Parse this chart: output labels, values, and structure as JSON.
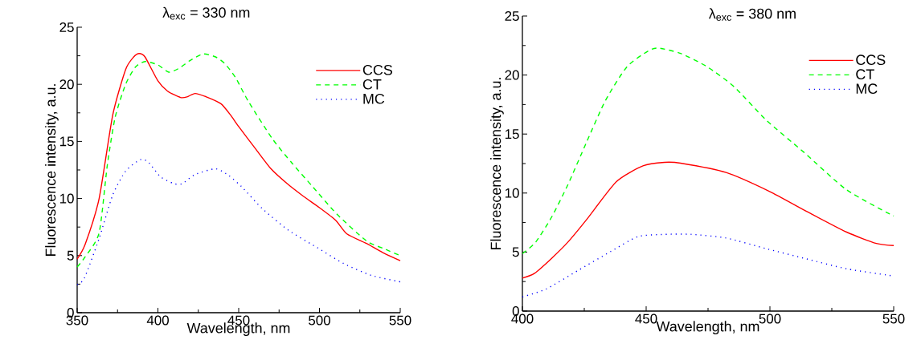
{
  "chart_data": [
    {
      "type": "line",
      "title": "λ$_{exc}$ = 330 nm",
      "xlabel": "Wavelength, nm",
      "ylabel": "Fluorescence intensity, a.u.",
      "xlim": [
        350,
        550
      ],
      "ylim": [
        0,
        25
      ],
      "xticks": [
        350,
        400,
        450,
        500,
        550
      ],
      "yticks": [
        0,
        5,
        10,
        15,
        20,
        25
      ],
      "legend": "top right",
      "series": [
        {
          "name": "CCS",
          "color": "#ff0000",
          "line_style": "solid",
          "x": [
            350,
            355,
            363.6,
            372,
            380,
            385,
            388.4,
            392,
            400,
            406,
            414,
            418,
            423,
            430,
            439,
            445,
            450,
            461,
            470,
            480,
            490,
            500,
            510,
            517,
            530,
            540,
            550
          ],
          "values": [
            4.7,
            6.0,
            10.0,
            17.3,
            21.3,
            22.4,
            22.7,
            22.4,
            20.3,
            19.4,
            18.85,
            18.9,
            19.2,
            18.9,
            18.3,
            17.3,
            16.3,
            14.25,
            12.6,
            11.3,
            10.2,
            9.2,
            8.1,
            6.9,
            6.0,
            5.2,
            4.55
          ]
        },
        {
          "name": "CT",
          "color": "#00ff00",
          "line_style": "dashed",
          "x": [
            350,
            355,
            363.6,
            368.6,
            373.5,
            380,
            386,
            392,
            400,
            406.7,
            413,
            420,
            428,
            435.7,
            441.5,
            448,
            456,
            471,
            483,
            496,
            511,
            529,
            540,
            550
          ],
          "values": [
            4.0,
            4.9,
            7.0,
            12.85,
            17.1,
            20.0,
            21.5,
            22.0,
            21.7,
            21.07,
            21.4,
            22.1,
            22.66,
            22.4,
            21.8,
            20.6,
            18.5,
            15.2,
            13.1,
            11.0,
            8.6,
            6.3,
            5.6,
            5.0
          ]
        },
        {
          "name": "MC",
          "color": "#0000ff",
          "line_style": "dotted",
          "x": [
            350,
            354.5,
            363.6,
            372,
            380,
            389,
            394,
            401.6,
            410,
            415,
            423,
            435.7,
            444,
            452,
            464.7,
            481,
            498.6,
            515,
            532,
            550
          ],
          "values": [
            2.45,
            3.04,
            6.5,
            10.3,
            12.4,
            13.4,
            13.2,
            11.9,
            11.3,
            11.3,
            12.1,
            12.6,
            12.0,
            11.0,
            9.1,
            7.2,
            5.7,
            4.3,
            3.27,
            2.7
          ]
        }
      ]
    },
    {
      "type": "line",
      "title": "λ$_{exc}$ = 380 nm",
      "xlabel": "Wavelength, nm",
      "ylabel": "Fluorescence intensity, a.u.",
      "xlim": [
        400,
        550
      ],
      "ylim": [
        0,
        25
      ],
      "xticks": [
        400,
        450,
        500,
        550
      ],
      "yticks": [
        0,
        5,
        10,
        15,
        20,
        25
      ],
      "legend": "top right",
      "series": [
        {
          "name": "CCS",
          "color": "#ff0000",
          "line_style": "solid",
          "x": [
            400,
            404.9,
            411.9,
            418.4,
            426,
            437.9,
            448.7,
            457.4,
            463.9,
            482.3,
            499.7,
            514.8,
            531,
            543,
            550
          ],
          "values": [
            2.79,
            3.2,
            4.49,
            5.85,
            7.77,
            10.95,
            12.3,
            12.6,
            12.53,
            11.74,
            10.15,
            8.45,
            6.69,
            5.73,
            5.55
          ]
        },
        {
          "name": "CT",
          "color": "#00ff00",
          "line_style": "dashed",
          "x": [
            400,
            405.4,
            411.9,
            418.4,
            426,
            433.6,
            442.2,
            450.9,
            455.2,
            463.9,
            474.7,
            485.6,
            498.6,
            513.8,
            531,
            550
          ],
          "values": [
            4.87,
            5.85,
            8.0,
            10.72,
            14.35,
            17.86,
            20.69,
            22.05,
            22.28,
            21.83,
            20.69,
            18.99,
            16.16,
            13.44,
            10.27,
            8.05
          ]
        },
        {
          "name": "MC",
          "color": "#0000ff",
          "line_style": "dotted",
          "x": [
            400,
            409.7,
            422.7,
            435.7,
            446.6,
            457.4,
            468.2,
            482.3,
            498.6,
            514.8,
            531,
            550
          ],
          "values": [
            1.2,
            1.88,
            3.47,
            5.05,
            6.3,
            6.5,
            6.5,
            6.19,
            5.28,
            4.42,
            3.58,
            2.97
          ]
        }
      ]
    }
  ]
}
